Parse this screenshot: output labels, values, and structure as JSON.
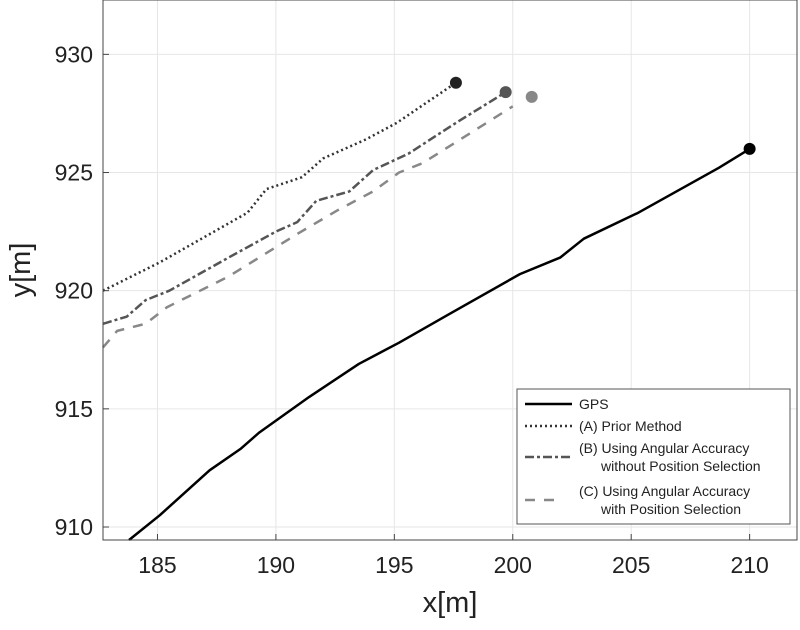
{
  "chart_data": {
    "type": "line",
    "title": "",
    "xlabel": "x[m]",
    "ylabel": "y[m]",
    "xlim": [
      182.7,
      212.0
    ],
    "ylim": [
      909.45,
      932.3
    ],
    "xticks": [
      185,
      190,
      195,
      200,
      205,
      210
    ],
    "yticks": [
      910,
      915,
      920,
      925,
      930
    ],
    "grid": true,
    "legend_position": "bottom-right",
    "series": [
      {
        "name": "GPS",
        "style": "solid",
        "color": "#000000",
        "end_marker_color": "#000000",
        "x": [
          183.8,
          185.1,
          187.2,
          188.5,
          189.3,
          191.4,
          193.5,
          195.2,
          197.3,
          200.3,
          202.0,
          203.0,
          205.3,
          208.7,
          210.0
        ],
        "y": [
          909.45,
          910.5,
          912.4,
          913.3,
          914.0,
          915.5,
          916.9,
          917.8,
          919.0,
          920.7,
          921.4,
          922.2,
          923.3,
          925.2,
          926.0
        ]
      },
      {
        "name": "(A) Prior Method",
        "style": "dotted",
        "color": "#333333",
        "end_marker_color": "#222222",
        "x": [
          182.7,
          185.1,
          188.8,
          189.6,
          191.1,
          192.0,
          193.8,
          195.1,
          197.6
        ],
        "y": [
          920.0,
          921.2,
          923.3,
          924.3,
          924.8,
          925.6,
          926.4,
          927.1,
          928.8
        ]
      },
      {
        "name": "(B) Using Angular Accuracy",
        "name_line2": "without Position Selection",
        "style": "dashdot",
        "color": "#555555",
        "end_marker_color": "#555555",
        "x": [
          182.7,
          183.7,
          184.5,
          185.5,
          188.0,
          190.0,
          190.9,
          191.7,
          193.1,
          194.1,
          195.6,
          197.6,
          199.7
        ],
        "y": [
          918.6,
          918.9,
          919.6,
          920.0,
          921.4,
          922.5,
          922.9,
          923.8,
          924.2,
          925.1,
          925.8,
          927.1,
          928.4
        ]
      },
      {
        "name": "(C) Using Angular Accuracy",
        "name_line2": "with Position Selection",
        "style": "dashed",
        "color": "#888888",
        "end_marker_color": "#888888",
        "x": [
          182.7,
          183.3,
          184.5,
          185.4,
          188.0,
          190.9,
          192.6,
          194.1,
          195.2,
          196.2,
          200.0
        ],
        "y": [
          917.6,
          918.3,
          918.6,
          919.3,
          920.6,
          922.4,
          923.4,
          924.2,
          925.0,
          925.4,
          927.8
        ],
        "end_marker": [
          200.8,
          928.2
        ]
      }
    ]
  }
}
